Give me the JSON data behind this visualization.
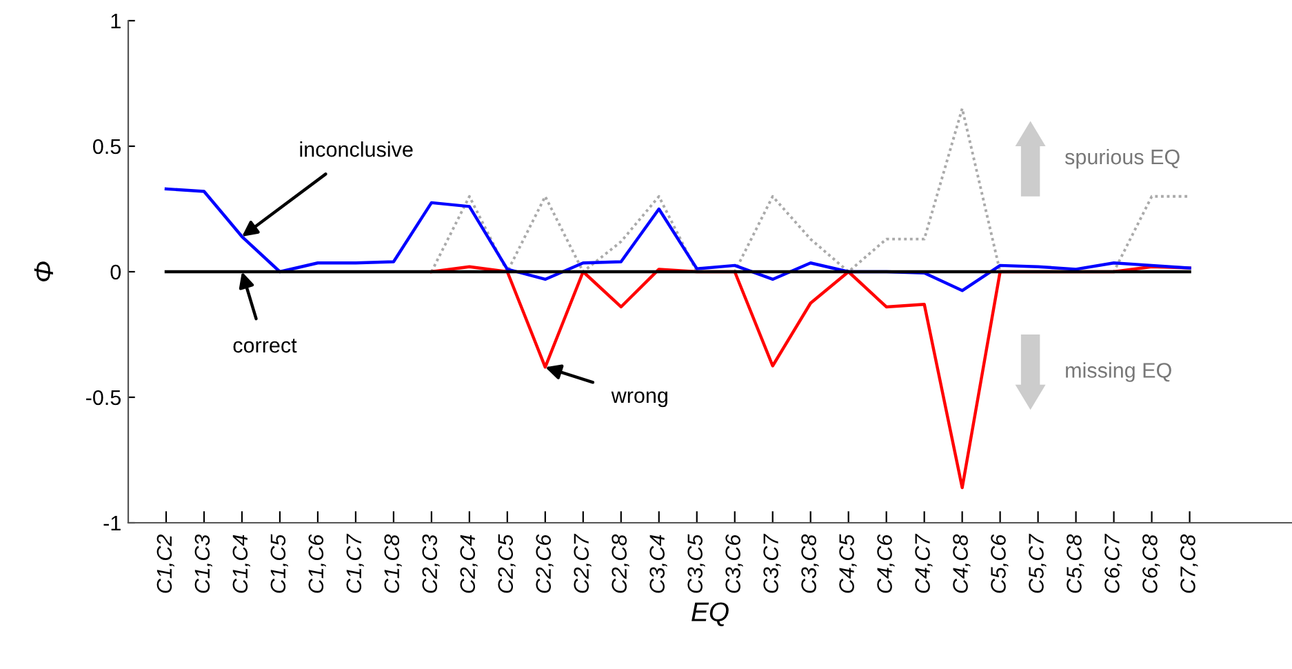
{
  "chart_data": {
    "type": "line",
    "xlabel": "EQ",
    "ylabel": "Φ",
    "categories": [
      "C1,C2",
      "C1,C3",
      "C1,C4",
      "C1,C5",
      "C1,C6",
      "C1,C7",
      "C1,C8",
      "C2,C3",
      "C2,C4",
      "C2,C5",
      "C2,C6",
      "C2,C7",
      "C2,C8",
      "C3,C4",
      "C3,C5",
      "C3,C6",
      "C3,C7",
      "C3,C8",
      "C4,C5",
      "C4,C6",
      "C4,C7",
      "C4,C8",
      "C5,C6",
      "C5,C7",
      "C5,C8",
      "C6,C7",
      "C6,C8",
      "C7,C8"
    ],
    "series": [
      {
        "color": "#aaaaaa",
        "line_style": "dotted",
        "values": [
          null,
          null,
          null,
          null,
          null,
          null,
          null,
          0,
          0.3,
          0,
          0.3,
          0,
          0.12,
          0.3,
          0,
          0,
          0.3,
          0.13,
          0,
          0.13,
          0.13,
          0.65,
          0,
          0,
          0,
          0,
          0.3,
          0.3
        ]
      },
      {
        "color": "#ff0000",
        "line_style": "solid",
        "values": [
          null,
          null,
          null,
          null,
          null,
          null,
          null,
          0,
          0.02,
          0,
          -0.38,
          0,
          -0.14,
          0.01,
          0,
          0,
          -0.375,
          -0.125,
          0,
          -0.14,
          -0.13,
          -0.86,
          0,
          0,
          0,
          0,
          0.02,
          0.015
        ]
      },
      {
        "color": "#0000ff",
        "line_style": "solid",
        "values": [
          0.33,
          0.32,
          0.14,
          0,
          0.035,
          0.035,
          0.04,
          0.275,
          0.26,
          0.01,
          -0.03,
          0.035,
          0.04,
          0.25,
          0.012,
          0.025,
          -0.03,
          0.035,
          0,
          0,
          -0.005,
          -0.075,
          0.025,
          0.02,
          0.01,
          0.035,
          0.025,
          0.015
        ]
      },
      {
        "color": "#000000",
        "line_style": "solid",
        "values": [
          0,
          0,
          0,
          0,
          0,
          0,
          0,
          0,
          0,
          0,
          0,
          0,
          0,
          0,
          0,
          0,
          0,
          0,
          0,
          0,
          0,
          0,
          0,
          0,
          0,
          0,
          0,
          0
        ]
      }
    ],
    "ylim": [
      -1,
      1
    ],
    "yticks": [
      {
        "value": -1,
        "label": "-1"
      },
      {
        "value": -0.5,
        "label": "-0.5"
      },
      0,
      0.5,
      1
    ],
    "grid": false,
    "legend": false,
    "marker": "none",
    "annotations": [
      {
        "text": "inconclusive",
        "x": "C1,C4",
        "y": 0.14
      },
      {
        "text": "correct",
        "x": "C1,C4",
        "y": 0
      },
      {
        "text": "wrong",
        "x": "C2,C6",
        "y": -0.38
      },
      "spurious EQ",
      "missing EQ"
    ]
  }
}
